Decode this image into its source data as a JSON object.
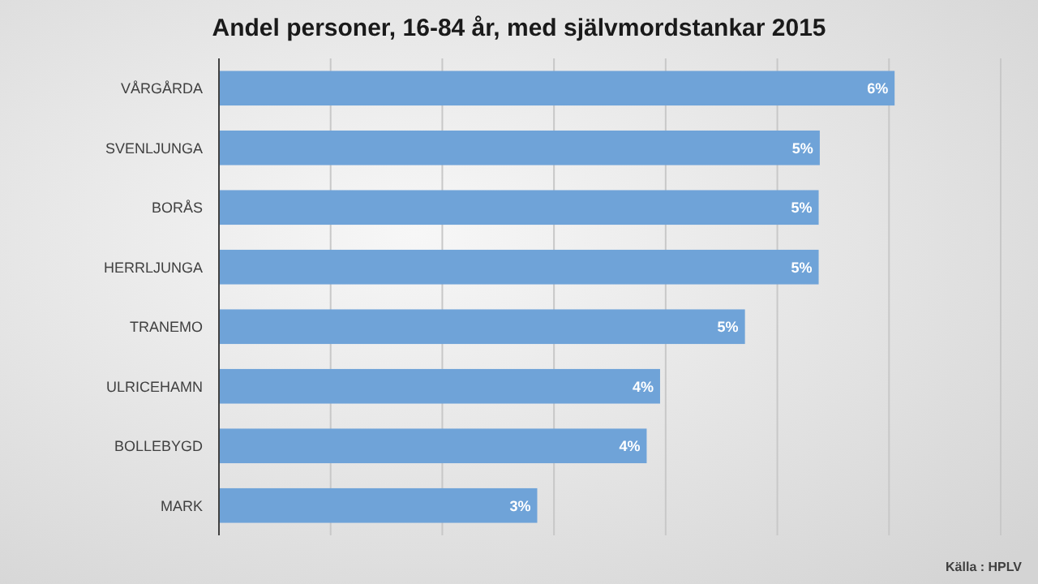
{
  "chart_data": {
    "type": "bar",
    "orientation": "horizontal",
    "title": "Andel personer, 16-84 år, med självmordstankar 2015",
    "categories": [
      "VÅRGÅRDA",
      "SVENLJUNGA",
      "BORÅS",
      "HERRLJUNGA",
      "TRANEMO",
      "ULRICEHAMN",
      "BOLLEBYGD",
      "MARK"
    ],
    "values": [
      6.05,
      5.38,
      5.37,
      5.37,
      4.71,
      3.95,
      3.83,
      2.85
    ],
    "value_labels": [
      "6%",
      "5%",
      "5%",
      "5%",
      "5%",
      "4%",
      "4%",
      "3%"
    ],
    "color": "#6fa3d8",
    "xlim": [
      0,
      7
    ],
    "xticks": [
      {
        "value": 0,
        "label": null
      },
      {
        "value": 1,
        "label": null
      },
      {
        "value": 2,
        "label": null
      },
      {
        "value": 3,
        "label": null
      },
      {
        "value": 4,
        "label": null
      },
      {
        "value": 5,
        "label": null
      },
      {
        "value": 6,
        "label": null
      },
      {
        "value": 7,
        "label": null
      }
    ],
    "tick_labels": "y",
    "grid": "x",
    "annotations": [
      "Källa : HPLV"
    ]
  }
}
